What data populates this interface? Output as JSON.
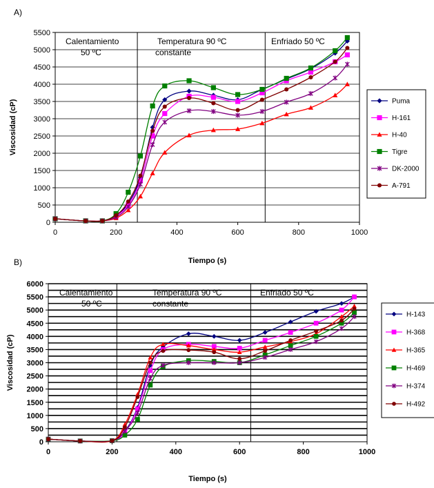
{
  "chart_data": [
    {
      "type": "line",
      "panel_label": "A)",
      "xlabel": "Tiempo (s)",
      "ylabel": "Viscosidad (cP)",
      "xlim": [
        0,
        1000
      ],
      "ylim": [
        0,
        5500
      ],
      "xticks": [
        0,
        200,
        400,
        600,
        800,
        1000
      ],
      "yticks": [
        0,
        500,
        1000,
        1500,
        2000,
        2500,
        3000,
        3500,
        4000,
        4500,
        5000,
        5500
      ],
      "grid": "horizontal",
      "legend": "right",
      "phase_boundaries": [
        270,
        690
      ],
      "phases": [
        {
          "line1": "Calentamiento",
          "line2": "50 ºC"
        },
        {
          "line1": "Temperatura  90 ºC",
          "line2": "constante"
        },
        {
          "line1": "Enfriado 50 ºC",
          "line2": ""
        }
      ],
      "series": [
        {
          "name": "Puma",
          "color": "#000080",
          "marker": "diamond",
          "x": [
            0,
            100,
            155,
            200,
            240,
            280,
            320,
            360,
            440,
            520,
            600,
            680,
            760,
            840,
            920,
            960
          ],
          "y": [
            100,
            40,
            40,
            200,
            550,
            1300,
            2750,
            3550,
            3800,
            3680,
            3550,
            3850,
            4150,
            4450,
            4900,
            5250
          ]
        },
        {
          "name": "H-161",
          "color": "#ff00ff",
          "marker": "square",
          "x": [
            0,
            100,
            155,
            200,
            240,
            280,
            320,
            360,
            440,
            520,
            600,
            680,
            760,
            840,
            920,
            960
          ],
          "y": [
            100,
            40,
            40,
            180,
            500,
            1200,
            2500,
            3150,
            3650,
            3620,
            3500,
            3750,
            4100,
            4350,
            4650,
            4850
          ]
        },
        {
          "name": "H-40",
          "color": "#ff0000",
          "marker": "triangle",
          "x": [
            0,
            100,
            155,
            200,
            240,
            280,
            320,
            360,
            440,
            520,
            600,
            680,
            760,
            840,
            920,
            960
          ],
          "y": [
            100,
            40,
            40,
            120,
            350,
            750,
            1420,
            2020,
            2520,
            2670,
            2700,
            2870,
            3130,
            3320,
            3680,
            4000
          ]
        },
        {
          "name": "Tigre",
          "color": "#008000",
          "marker": "square",
          "x": [
            0,
            100,
            155,
            200,
            240,
            280,
            320,
            360,
            440,
            520,
            600,
            680,
            760,
            840,
            920,
            960
          ],
          "y": [
            100,
            40,
            40,
            250,
            870,
            1920,
            3370,
            3950,
            4100,
            3900,
            3700,
            3850,
            4170,
            4470,
            4970,
            5350
          ]
        },
        {
          "name": "DK-2000",
          "color": "#800080",
          "marker": "asterisk",
          "x": [
            0,
            100,
            155,
            200,
            240,
            280,
            320,
            360,
            440,
            520,
            600,
            680,
            760,
            840,
            920,
            960
          ],
          "y": [
            100,
            40,
            40,
            150,
            450,
            1100,
            2250,
            2900,
            3230,
            3210,
            3100,
            3210,
            3480,
            3730,
            4180,
            4580
          ]
        },
        {
          "name": "A-791",
          "color": "#800000",
          "marker": "circle",
          "x": [
            0,
            100,
            155,
            200,
            240,
            280,
            320,
            360,
            440,
            520,
            600,
            680,
            760,
            840,
            920,
            960
          ],
          "y": [
            100,
            40,
            40,
            200,
            600,
            1350,
            2650,
            3350,
            3600,
            3450,
            3250,
            3550,
            3850,
            4200,
            4650,
            5050
          ]
        }
      ]
    },
    {
      "type": "line",
      "panel_label": "B)",
      "xlabel": "Tiempo (s)",
      "ylabel": "Viscosidad (cP)",
      "xlim": [
        0,
        1000
      ],
      "ylim": [
        0,
        6000
      ],
      "xticks": [
        0,
        200,
        400,
        600,
        800,
        1000
      ],
      "yticks": [
        0,
        250,
        500,
        750,
        1000,
        1250,
        1500,
        1750,
        2000,
        2250,
        2500,
        2750,
        3000,
        3250,
        3500,
        3750,
        4000,
        4250,
        4500,
        4750,
        5000,
        5250,
        5500,
        5750,
        6000
      ],
      "yticks_labeled": [
        0,
        500,
        1000,
        1500,
        2000,
        2500,
        3000,
        3500,
        4000,
        4500,
        5000,
        5500,
        6000
      ],
      "grid": "horizontal",
      "legend": "right",
      "phase_boundaries": [
        215,
        635
      ],
      "phases": [
        {
          "line1": "Calentamiento",
          "line2": "50 ºC"
        },
        {
          "line1": "Temperatura  90 ºC",
          "line2": "constante"
        },
        {
          "line1": "Enfriado 50 ºC",
          "line2": ""
        }
      ],
      "series": [
        {
          "name": "H-143",
          "color": "#000080",
          "marker": "diamond",
          "x": [
            0,
            100,
            200,
            240,
            280,
            320,
            360,
            440,
            520,
            600,
            680,
            760,
            840,
            920,
            960
          ],
          "y": [
            100,
            30,
            40,
            400,
            1300,
            2900,
            3600,
            4100,
            4000,
            3850,
            4150,
            4550,
            4950,
            5250,
            5500
          ]
        },
        {
          "name": "H-368",
          "color": "#ff00ff",
          "marker": "square",
          "x": [
            0,
            100,
            200,
            240,
            280,
            320,
            360,
            440,
            520,
            600,
            680,
            760,
            840,
            920,
            960
          ],
          "y": [
            100,
            30,
            40,
            350,
            1250,
            2700,
            3500,
            3700,
            3620,
            3550,
            3850,
            4150,
            4500,
            5000,
            5500
          ]
        },
        {
          "name": "H-365",
          "color": "#ff0000",
          "marker": "triangle",
          "x": [
            0,
            100,
            200,
            240,
            280,
            320,
            360,
            440,
            520,
            600,
            680,
            760,
            840,
            920,
            960
          ],
          "y": [
            100,
            30,
            40,
            650,
            1800,
            3200,
            3700,
            3650,
            3500,
            3400,
            3600,
            3800,
            4100,
            4750,
            5150
          ]
        },
        {
          "name": "H-469",
          "color": "#008000",
          "marker": "square",
          "x": [
            0,
            100,
            200,
            240,
            280,
            320,
            360,
            440,
            520,
            600,
            680,
            760,
            840,
            920,
            960
          ],
          "y": [
            100,
            30,
            40,
            250,
            850,
            2150,
            2850,
            3080,
            3050,
            3000,
            3300,
            3650,
            4000,
            4500,
            4900
          ]
        },
        {
          "name": "H-374",
          "color": "#800080",
          "marker": "asterisk",
          "x": [
            0,
            100,
            200,
            240,
            280,
            320,
            360,
            440,
            520,
            600,
            680,
            760,
            840,
            920,
            960
          ],
          "y": [
            100,
            30,
            40,
            400,
            1100,
            2400,
            2900,
            3000,
            3000,
            3000,
            3200,
            3500,
            3800,
            4300,
            4750
          ]
        },
        {
          "name": "H-492",
          "color": "#800000",
          "marker": "circle",
          "x": [
            0,
            100,
            200,
            240,
            280,
            320,
            360,
            440,
            520,
            600,
            680,
            760,
            840,
            920,
            960
          ],
          "y": [
            100,
            30,
            40,
            550,
            1700,
            3000,
            3450,
            3480,
            3400,
            3150,
            3450,
            3850,
            4200,
            4600,
            5050
          ]
        }
      ]
    }
  ]
}
